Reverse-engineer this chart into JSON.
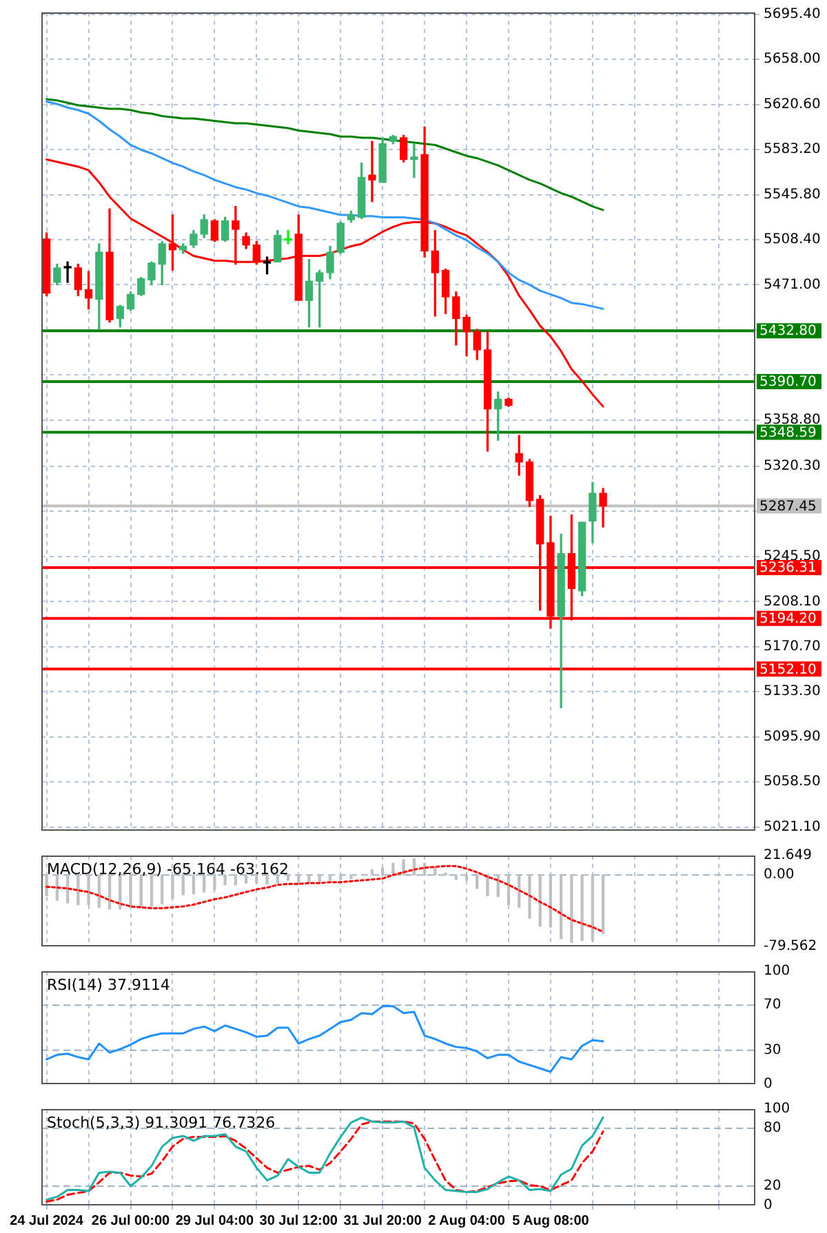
{
  "chart_data": [
    {
      "type": "candlestick",
      "categories": [
        null,
        null,
        null,
        null,
        null,
        null,
        null,
        null,
        null,
        null,
        null,
        null,
        null,
        null,
        null,
        null,
        null,
        null,
        null,
        null,
        null,
        null,
        null,
        null,
        null,
        null,
        null,
        null,
        null,
        null,
        null,
        null,
        null,
        null,
        null,
        null,
        null,
        null,
        null,
        null,
        null,
        null,
        null,
        null,
        null,
        null,
        null,
        null,
        null,
        null,
        null,
        null,
        null,
        null
      ],
      "ohlc": [
        [
          5509,
          5514,
          5462,
          5464
        ],
        [
          5473,
          5488,
          5471,
          5485
        ],
        [
          5485,
          5490,
          5473,
          5485
        ],
        [
          5485,
          5488,
          5462,
          5467
        ],
        [
          5467,
          5482,
          5451,
          5460
        ],
        [
          5459,
          5505,
          5434,
          5498
        ],
        [
          5498,
          5534,
          5440,
          5442
        ],
        [
          5443,
          5454,
          5436,
          5453
        ],
        [
          5451,
          5465,
          5450,
          5463
        ],
        [
          5463,
          5477,
          5462,
          5476
        ],
        [
          5475,
          5490,
          5471,
          5489
        ],
        [
          5488,
          5507,
          5471,
          5505
        ],
        [
          5505,
          5529,
          5483,
          5500
        ],
        [
          5500,
          5505,
          5497,
          5503
        ],
        [
          5504,
          5516,
          5502,
          5513
        ],
        [
          5513,
          5529,
          5510,
          5525
        ],
        [
          5524,
          5525,
          5507,
          5508
        ],
        [
          5508,
          5527,
          5507,
          5524
        ],
        [
          5524,
          5536,
          5488,
          5517
        ],
        [
          5511,
          5514,
          5501,
          5504
        ],
        [
          5504,
          5507,
          5488,
          5490
        ],
        [
          5489,
          5494,
          5480,
          5489
        ],
        [
          5490,
          5516,
          5490,
          5512
        ],
        [
          5508,
          5516,
          5505,
          5508
        ],
        [
          5513,
          5529,
          5458,
          5458
        ],
        [
          5458,
          5492,
          5436,
          5474
        ],
        [
          5474,
          5483,
          5436,
          5481
        ],
        [
          5481,
          5503,
          5476,
          5498
        ],
        [
          5498,
          5523,
          5497,
          5522
        ],
        [
          5525,
          5532,
          5523,
          5529
        ],
        [
          5527,
          5572,
          5526,
          5560
        ],
        [
          5562,
          5590,
          5540,
          5558
        ],
        [
          5556,
          5593,
          5556,
          5588
        ],
        [
          5590,
          5595,
          5588,
          5594
        ],
        [
          5593,
          5595,
          5573,
          5575
        ],
        [
          5575,
          5588,
          5560,
          5577
        ],
        [
          5579,
          5602,
          5494,
          5499
        ],
        [
          5499,
          5516,
          5445,
          5481
        ],
        [
          5483,
          5484,
          5447,
          5461
        ],
        [
          5461,
          5465,
          5421,
          5443
        ],
        [
          5444,
          5446,
          5412,
          5432
        ],
        [
          5432,
          5434,
          5409,
          5417
        ],
        [
          5417,
          5432,
          5333,
          5368
        ],
        [
          5368,
          5382,
          5342,
          5376
        ],
        [
          5376,
          5377,
          5370,
          5371
        ],
        [
          5331,
          5346,
          5313,
          5324
        ],
        [
          5324,
          5326,
          5287,
          5292
        ],
        [
          5293,
          5296,
          5201,
          5256
        ],
        [
          5257,
          5279,
          5186,
          5196
        ],
        [
          5196,
          5264,
          5120,
          5248
        ],
        [
          5248,
          5280,
          5193,
          5219
        ],
        [
          5217,
          5274,
          5213,
          5274
        ],
        [
          5275,
          5307,
          5257,
          5298
        ],
        [
          5298,
          5302,
          5270,
          5287.45
        ]
      ],
      "colors": [
        "#ff0000",
        "#3cb371",
        "#000000",
        "#ff0000",
        "#ff0000",
        "#3cb371",
        "#ff0000",
        "#3cb371",
        "#3cb371",
        "#3cb371",
        "#3cb371",
        "#3cb371",
        "#ff0000",
        "#3cb371",
        "#3cb371",
        "#3cb371",
        "#ff0000",
        "#3cb371",
        "#ff0000",
        "#ff0000",
        "#ff0000",
        "#000000",
        "#3cb371",
        "#00ff00",
        "#ff0000",
        "#3cb371",
        "#3cb371",
        "#3cb371",
        "#3cb371",
        "#3cb371",
        "#3cb371",
        "#ff0000",
        "#3cb371",
        "#3cb371",
        "#ff0000",
        "#3cb371",
        "#ff0000",
        "#ff0000",
        "#ff0000",
        "#ff0000",
        "#ff0000",
        "#ff0000",
        "#ff0000",
        "#3cb371",
        "#ff0000",
        "#ff0000",
        "#ff0000",
        "#ff0000",
        "#ff0000",
        "#3cb371",
        "#ff0000",
        "#3cb371",
        "#3cb371",
        "#ff0000"
      ],
      "series": [
        {
          "type": "line",
          "color": "#008000",
          "values": [
            5625,
            5624,
            5622,
            5620,
            5619,
            5618,
            5617,
            5617,
            5616,
            5614,
            5613,
            5611,
            5610,
            5609,
            5609,
            5608,
            5607,
            5606,
            5605,
            5605,
            5604,
            5603,
            5602,
            5601,
            5599,
            5598,
            5597,
            5596,
            5594,
            5594,
            5593,
            5593,
            5592,
            5591,
            5590,
            5589,
            5588,
            5587,
            5584,
            5581,
            5578,
            5576,
            5573,
            5570,
            5566,
            5562,
            5558,
            5555,
            5551,
            5547,
            5544,
            5540,
            5536,
            5533
          ]
        },
        {
          "type": "line",
          "color": "#3399ff",
          "values": [
            5623,
            5621,
            5618,
            5616,
            5613,
            5607,
            5600,
            5594,
            5587,
            5583,
            5580,
            5576,
            5572,
            5569,
            5565,
            5562,
            5558,
            5555,
            5552,
            5550,
            5547,
            5545,
            5542,
            5539,
            5536,
            5535,
            5533,
            5531,
            5529,
            5529,
            5528,
            5528,
            5527,
            5527,
            5527,
            5526,
            5525,
            5522,
            5517,
            5512,
            5508,
            5502,
            5497,
            5490,
            5481,
            5475,
            5471,
            5466,
            5463,
            5460,
            5456,
            5455,
            5453,
            5451
          ]
        },
        {
          "type": "line",
          "color": "#ff0000",
          "values": [
            5575,
            5573,
            5571,
            5569,
            5566,
            5556,
            5544,
            5535,
            5526,
            5521,
            5516,
            5511,
            5506,
            5500,
            5495,
            5493,
            5491,
            5491,
            5490,
            5490,
            5490,
            5491,
            5492,
            5493,
            5495,
            5495,
            5495,
            5497,
            5500,
            5503,
            5505,
            5510,
            5515,
            5519,
            5522,
            5523,
            5523,
            5522,
            5519,
            5515,
            5512,
            5505,
            5498,
            5490,
            5478,
            5462,
            5450,
            5437,
            5428,
            5416,
            5401,
            5391,
            5380,
            5370
          ]
        }
      ],
      "ylim": [
        5018,
        5697
      ],
      "yticks": [
        {
          "value": 5021.1,
          "label": "5021.10"
        },
        {
          "value": 5058.5,
          "label": "5058.50"
        },
        {
          "value": 5095.9,
          "label": "5095.90"
        },
        {
          "value": 5133.3,
          "label": "5133.30"
        },
        {
          "value": 5170.7,
          "label": "5170.70"
        },
        {
          "value": 5208.1,
          "label": "5208.10"
        },
        {
          "value": 5245.5,
          "label": "5245.50"
        },
        {
          "value": 5283,
          "label": null
        },
        {
          "value": 5320.3,
          "label": "5320.30"
        },
        {
          "value": 5358.8,
          "label": "5358.80"
        },
        {
          "value": 5396.2,
          "label": null
        },
        {
          "value": 5433.6,
          "label": null
        },
        {
          "value": 5471,
          "label": "5471.00"
        },
        {
          "value": 5508.4,
          "label": "5508.40"
        },
        {
          "value": 5545.8,
          "label": "5545.80"
        },
        {
          "value": 5583.2,
          "label": "5583.20"
        },
        {
          "value": 5620.6,
          "label": "5620.60"
        },
        {
          "value": 5658,
          "label": "5658.00"
        },
        {
          "value": 5695.4,
          "label": "5695.40"
        }
      ],
      "grid": true,
      "ref_lines": [
        {
          "axis": "y",
          "value": 5432.8,
          "label": "5432.80",
          "color": "#008000"
        },
        {
          "axis": "y",
          "value": 5390.7,
          "label": "5390.70",
          "color": "#008000"
        },
        {
          "axis": "y",
          "value": 5348.59,
          "label": "5348.59",
          "color": "#008000"
        },
        {
          "axis": "y",
          "value": 5287.45,
          "label": "5287.45",
          "color": "#c0c0c0"
        },
        {
          "axis": "y",
          "value": 5236.31,
          "label": "5236.31",
          "color": "#ff0000"
        },
        {
          "axis": "y",
          "value": 5194.2,
          "label": "5194.20",
          "color": "#ff0000"
        },
        {
          "axis": "y",
          "value": 5152.1,
          "label": "5152.10",
          "color": "#ff0000"
        }
      ],
      "tick_labels": "y"
    },
    {
      "type": "bar",
      "title": "MACD(12,26,9) -65.164 -63.162",
      "categories": [
        null,
        null,
        null,
        null,
        null,
        null,
        null,
        null,
        null,
        null,
        null,
        null,
        null,
        null,
        null,
        null,
        null,
        null,
        null,
        null,
        null,
        null,
        null,
        null,
        null,
        null,
        null,
        null,
        null,
        null,
        null,
        null,
        null,
        null,
        null,
        null,
        null,
        null,
        null,
        null,
        null,
        null,
        null,
        null,
        null,
        null,
        null,
        null,
        null,
        null,
        null,
        null,
        null,
        null
      ],
      "series": [
        {
          "type": "bar",
          "color": "#c0c0c0",
          "values": [
            -23,
            -28,
            -31,
            -33,
            -33,
            -36,
            -38,
            -38,
            -36,
            -36,
            -35,
            -32,
            -26,
            -22,
            -21,
            -19,
            -16,
            -11,
            -11,
            -9,
            -9,
            -10,
            -9,
            -6,
            -9,
            -9,
            -8,
            -6,
            -5,
            -4,
            null,
            6,
            8,
            13,
            17,
            18,
            13,
            8,
            2,
            -5,
            -6,
            -15,
            -23,
            -24,
            -33,
            -36,
            -48,
            -57,
            -58,
            -71,
            -75,
            -73,
            -73,
            -65.164
          ]
        },
        {
          "type": "line",
          "color": "#ff0000",
          "line_style": "dotted",
          "values": [
            -13,
            -14,
            -15,
            -17,
            -19,
            -23,
            -28,
            -32,
            -35,
            -36,
            -37,
            -37,
            -36,
            -35,
            -33,
            -30,
            -27,
            -25,
            -22,
            -19,
            -16,
            -14,
            -11,
            -10,
            -10,
            -9,
            -9,
            -8,
            -8,
            -7,
            -6,
            -5,
            -4,
            0,
            3,
            6,
            8,
            9,
            10,
            10,
            7,
            3,
            -2,
            -6,
            -11,
            -17,
            -23,
            -30,
            -36,
            -43,
            -50,
            -54,
            -58,
            -63.162
          ]
        }
      ],
      "ylim": [
        -79.562,
        21.649
      ],
      "yticks": [
        -79.562,
        {
          "value": 0,
          "label": "0.00"
        },
        21.649
      ],
      "grid": "x",
      "ref_lines": [
        {
          "axis": "y",
          "value": 0,
          "color": "#a0b4c8",
          "line_style": "dashed"
        }
      ],
      "tick_labels": "y"
    },
    {
      "type": "line",
      "title": "RSI(14) 37.9114",
      "categories": [
        null,
        null,
        null,
        null,
        null,
        null,
        null,
        null,
        null,
        null,
        null,
        null,
        null,
        null,
        null,
        null,
        null,
        null,
        null,
        null,
        null,
        null,
        null,
        null,
        null,
        null,
        null,
        null,
        null,
        null,
        null,
        null,
        null,
        null,
        null,
        null,
        null,
        null,
        null,
        null,
        null,
        null,
        null,
        null,
        null,
        null,
        null,
        null,
        null,
        null,
        null,
        null,
        null,
        null
      ],
      "series": [
        {
          "color": "#1e90ff",
          "values": [
            22,
            26,
            27,
            24,
            22,
            36,
            28,
            31,
            35,
            40,
            43,
            45,
            45,
            45,
            49,
            51,
            47,
            52,
            49,
            46,
            42,
            43,
            50,
            50,
            36,
            40,
            43,
            49,
            55,
            57,
            63,
            62,
            69,
            69,
            63,
            64,
            43,
            40,
            36,
            33,
            32,
            29,
            23,
            26,
            26,
            20,
            17,
            14,
            11,
            24,
            22,
            34,
            39,
            37.9114
          ]
        }
      ],
      "ylim": [
        0,
        100
      ],
      "yticks": [
        0,
        30,
        70,
        100
      ],
      "grid": "x",
      "ref_lines": [
        {
          "axis": "y",
          "value": 70,
          "color": "#a0b4c8",
          "line_style": "dashed"
        },
        {
          "axis": "y",
          "value": 30,
          "color": "#a0b4c8",
          "line_style": "dashed"
        }
      ],
      "tick_labels": "y"
    },
    {
      "type": "line",
      "title": "Stoch(5,3,3) 91.3091 76.7326",
      "categories": [
        "24 Jul 2024",
        null,
        null,
        null,
        null,
        null,
        null,
        null,
        "26 Jul 00:00",
        null,
        null,
        null,
        null,
        null,
        null,
        null,
        "29 Jul 04:00",
        null,
        null,
        null,
        null,
        null,
        null,
        null,
        "30 Jul 12:00",
        null,
        null,
        null,
        null,
        null,
        null,
        null,
        "31 Jul 20:00",
        null,
        null,
        null,
        null,
        null,
        null,
        null,
        "2 Aug 04:00",
        null,
        null,
        null,
        null,
        null,
        null,
        null,
        "5 Aug 08:00",
        null,
        null,
        null,
        null,
        null
      ],
      "series": [
        {
          "color": "#20b2aa",
          "values": [
            6,
            9,
            16,
            16,
            15,
            34,
            35,
            34,
            20,
            29,
            41,
            61,
            70,
            72,
            67,
            72,
            72,
            74,
            61,
            56,
            39,
            26,
            31,
            48,
            40,
            34,
            34,
            54,
            71,
            86,
            91,
            87,
            86,
            86,
            87,
            81,
            39,
            26,
            16,
            15,
            14,
            14,
            17,
            24,
            30,
            26,
            16,
            17,
            15,
            32,
            38,
            62,
            72,
            91.3091
          ]
        },
        {
          "color": "#ff0000",
          "line_style": "dashed",
          "values": [
            4,
            6,
            11,
            13,
            15,
            24,
            34,
            34,
            31,
            30,
            33,
            46,
            61,
            69,
            71,
            71,
            71,
            72,
            67,
            59,
            49,
            39,
            34,
            37,
            40,
            41,
            37,
            44,
            56,
            69,
            84,
            87,
            87,
            87,
            87,
            85,
            69,
            47,
            26,
            16,
            14,
            15,
            19,
            23,
            25,
            26,
            21,
            20,
            16,
            21,
            26,
            44,
            56,
            76.7326
          ]
        }
      ],
      "ylim": [
        0,
        100
      ],
      "yticks": [
        0,
        20,
        80,
        100
      ],
      "grid": "x",
      "ref_lines": [
        {
          "axis": "y",
          "value": 80,
          "color": "#a0b4c8",
          "line_style": "dashed"
        },
        {
          "axis": "y",
          "value": 20,
          "color": "#a0b4c8",
          "line_style": "dashed"
        }
      ]
    }
  ]
}
